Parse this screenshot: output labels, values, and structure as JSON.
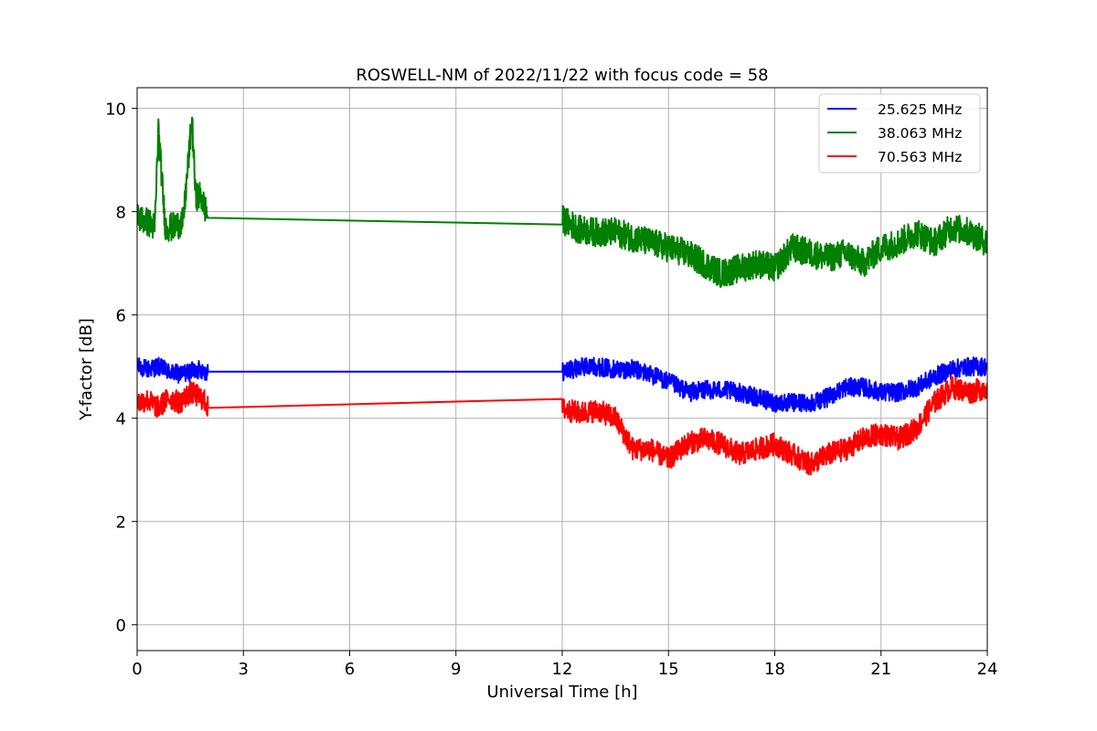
{
  "chart_data": {
    "type": "line",
    "title": "ROSWELL-NM of 2022/11/22 with focus code = 58",
    "xlabel": "Universal Time [h]",
    "ylabel": "Y-factor [dB]",
    "xlim": [
      0,
      24
    ],
    "ylim": [
      -0.5,
      10.4
    ],
    "x_ticks": [
      "0",
      "3",
      "6",
      "9",
      "12",
      "15",
      "18",
      "21",
      "24"
    ],
    "y_ticks": [
      "0",
      "2",
      "4",
      "6",
      "8",
      "10"
    ],
    "grid": true,
    "legend_position": "upper-right",
    "series": [
      {
        "name": "25.625 MHz",
        "color": "#0000ff",
        "x": [
          0,
          0.3,
          0.6,
          0.9,
          1.2,
          1.5,
          1.8,
          1.95,
          2.0,
          12.0,
          12.3,
          12.6,
          13.0,
          13.5,
          14.0,
          14.5,
          15.0,
          15.3,
          15.6,
          16.0,
          16.5,
          17.0,
          17.5,
          18.0,
          18.5,
          19.0,
          19.5,
          20.0,
          20.5,
          21.0,
          21.5,
          22.0,
          22.5,
          23.0,
          23.5,
          24.0
        ],
        "values": [
          5.0,
          4.95,
          5.0,
          4.9,
          4.85,
          4.9,
          4.95,
          4.9,
          4.9,
          4.9,
          4.95,
          5.0,
          5.0,
          4.95,
          4.95,
          4.85,
          4.7,
          4.6,
          4.5,
          4.55,
          4.55,
          4.5,
          4.4,
          4.3,
          4.3,
          4.3,
          4.4,
          4.6,
          4.6,
          4.5,
          4.5,
          4.6,
          4.8,
          4.95,
          5.0,
          5.0
        ]
      },
      {
        "name": "38.063 MHz",
        "color": "#008000",
        "x": [
          0,
          0.3,
          0.5,
          0.6,
          0.7,
          0.8,
          1.0,
          1.3,
          1.55,
          1.65,
          1.8,
          1.95,
          2.0,
          12.0,
          12.5,
          13.0,
          13.5,
          14.0,
          14.5,
          15.0,
          15.5,
          16.0,
          16.5,
          17.0,
          17.5,
          18.0,
          18.5,
          19.0,
          19.5,
          20.0,
          20.5,
          21.0,
          21.5,
          22.0,
          22.5,
          23.0,
          23.5,
          24.0
        ],
        "values": [
          7.9,
          7.8,
          7.7,
          9.6,
          8.6,
          7.7,
          7.7,
          7.8,
          9.8,
          8.3,
          8.3,
          8.0,
          7.88,
          7.85,
          7.65,
          7.6,
          7.6,
          7.5,
          7.4,
          7.3,
          7.2,
          7.0,
          6.8,
          6.9,
          7.0,
          6.9,
          7.3,
          7.2,
          7.1,
          7.2,
          7.0,
          7.3,
          7.4,
          7.6,
          7.4,
          7.7,
          7.6,
          7.4
        ]
      },
      {
        "name": "70.563 MHz",
        "color": "#ff0000",
        "x": [
          0,
          0.3,
          0.6,
          0.9,
          1.2,
          1.5,
          1.8,
          1.95,
          2.0,
          12.0,
          12.5,
          13.0,
          13.5,
          14.0,
          14.5,
          15.0,
          15.5,
          16.0,
          16.5,
          17.0,
          17.5,
          18.0,
          18.5,
          19.0,
          19.5,
          20.0,
          20.5,
          21.0,
          21.5,
          22.0,
          22.5,
          23.0,
          23.5,
          24.0
        ],
        "values": [
          4.3,
          4.35,
          4.2,
          4.4,
          4.3,
          4.5,
          4.4,
          4.3,
          4.2,
          4.18,
          4.1,
          4.15,
          4.0,
          3.4,
          3.4,
          3.2,
          3.5,
          3.6,
          3.5,
          3.3,
          3.4,
          3.5,
          3.3,
          3.1,
          3.3,
          3.4,
          3.6,
          3.7,
          3.6,
          3.8,
          4.3,
          4.6,
          4.5,
          4.6
        ]
      }
    ]
  }
}
